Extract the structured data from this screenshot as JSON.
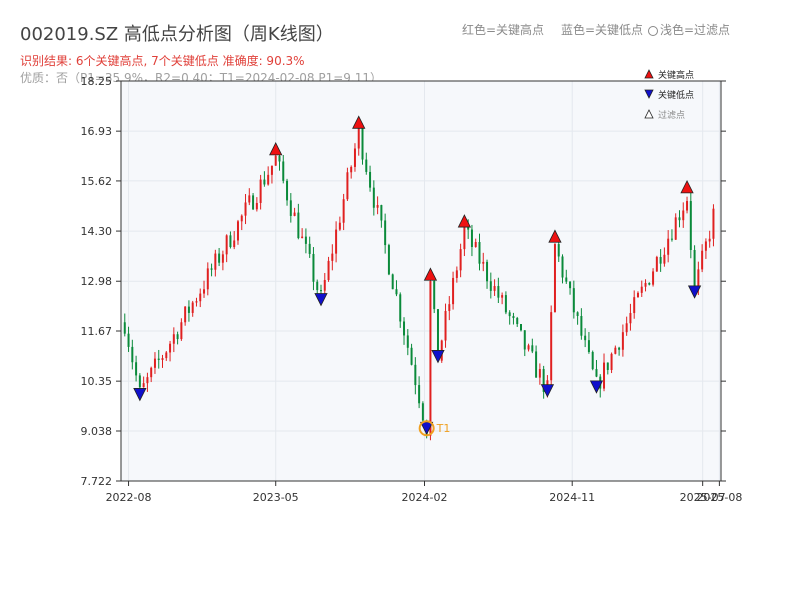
{
  "title": "002019.SZ 高低点分析图（周K线图）",
  "legend_top": {
    "red": "红色=关键高点",
    "blue": "蓝色=关键低点",
    "light": "浅色=过滤点"
  },
  "result_text": "识别结果: 6个关键高点, 7个关键低点   准确度: 90.3%",
  "quality_text": "优质：否（P1=35.9%，R2=0.40；T1=2024-02-08 P1=9.11）",
  "colors": {
    "up": "#e02020",
    "down": "#0a8a3a",
    "high_marker": "#ee1111",
    "low_marker": "#1010cc",
    "t1_ring": "#f0a020",
    "plot_bg": "#f6f8fb",
    "grid": "#e4e8ee"
  },
  "chart_data": {
    "type": "candlestick",
    "x_tick_labels": [
      "2022-08",
      "2023-05",
      "2024-02",
      "2024-11",
      "2025-07",
      "2025-08"
    ],
    "x_ticks": [
      "2022-08-01",
      "2023-05-01",
      "2024-02-01",
      "2024-11-01",
      "2025-07-01",
      "2025-08-01"
    ],
    "xlim": [
      "2022-07-18",
      "2025-08-04"
    ],
    "y_tick_labels": [
      "18.25",
      "16.93",
      "15.62",
      "14.30",
      "12.98",
      "11.67",
      "10.35",
      "9.038",
      "7.722"
    ],
    "ylim": [
      7.722,
      18.25
    ],
    "legend": {
      "high": "关键高点",
      "low": "关键低点",
      "filtered": "过滤点"
    },
    "legend_placement": "top-right",
    "grid": true,
    "key_highs": [
      {
        "date": "2023-05-01",
        "price": 16.2
      },
      {
        "date": "2023-10-02",
        "price": 16.9
      },
      {
        "date": "2024-02-12",
        "price": 12.9
      },
      {
        "date": "2024-04-15",
        "price": 14.3
      },
      {
        "date": "2024-09-30",
        "price": 13.9
      },
      {
        "date": "2025-06-02",
        "price": 15.2
      }
    ],
    "key_lows": [
      {
        "date": "2022-08-22",
        "price": 10.0
      },
      {
        "date": "2023-07-24",
        "price": 12.5
      },
      {
        "date": "2024-02-05",
        "price": 9.111
      },
      {
        "date": "2024-02-26",
        "price": 11.0
      },
      {
        "date": "2024-09-16",
        "price": 10.1
      },
      {
        "date": "2024-12-16",
        "price": 10.2
      },
      {
        "date": "2025-06-16",
        "price": 12.7
      }
    ],
    "t1": {
      "label": "T1",
      "date": "2024-02-05",
      "price": 9.111
    }
  }
}
